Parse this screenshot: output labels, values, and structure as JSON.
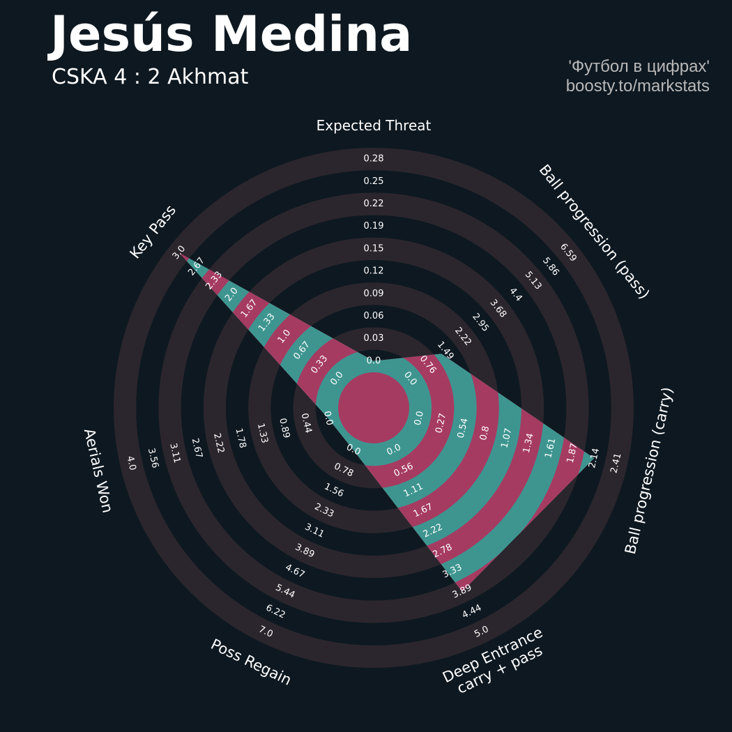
{
  "header": {
    "player_name": "Jesús Medina",
    "match": "CSKA 4 : 2 Akhmat",
    "credit_line1": "'Футбол в цифрах'",
    "credit_line2": "boosty.to/markstats"
  },
  "chart_data": {
    "type": "radar",
    "params": [
      {
        "label": "Expected Threat",
        "label2": "",
        "ticks": [
          "0.0",
          "0.03",
          "0.06",
          "0.09",
          "0.12",
          "0.15",
          "0.19",
          "0.22",
          "0.25",
          "0.28"
        ],
        "min": 0.0,
        "max": 0.28,
        "value": 0.0
      },
      {
        "label": "Ball progression (pass)",
        "label2": "",
        "ticks": [
          "0.0",
          "0.76",
          "1.49",
          "2.22",
          "2.95",
          "3.68",
          "4.4",
          "5.13",
          "5.86",
          "6.59"
        ],
        "min": 0.0,
        "max": 6.59,
        "value": 1.3
      },
      {
        "label": "Ball progression (carry)",
        "label2": "",
        "ticks": [
          "0.0",
          "0.27",
          "0.54",
          "0.8",
          "1.07",
          "1.34",
          "1.61",
          "1.87",
          "2.14",
          "2.41"
        ],
        "min": 0.0,
        "max": 2.41,
        "value": 2.14
      },
      {
        "label": "Deep Entrance",
        "label2": "carry + pass",
        "ticks": [
          "0.0",
          "0.56",
          "1.11",
          "1.67",
          "2.22",
          "2.78",
          "3.33",
          "3.89",
          "4.44",
          "5.0"
        ],
        "min": 0.0,
        "max": 5.0,
        "value": 3.89
      },
      {
        "label": "Poss Regain",
        "label2": "",
        "ticks": [
          "0.0",
          "0.78",
          "1.56",
          "2.33",
          "3.11",
          "3.89",
          "4.67",
          "5.44",
          "6.22",
          "7.0"
        ],
        "min": 0.0,
        "max": 7.0,
        "value": 0.0
      },
      {
        "label": "Aerials Won",
        "label2": "",
        "ticks": [
          "0.0",
          "0.44",
          "0.89",
          "1.33",
          "1.78",
          "2.22",
          "2.67",
          "3.11",
          "3.56",
          "4.0"
        ],
        "min": 0.0,
        "max": 4.0,
        "value": 0.0
      },
      {
        "label": "Key Pass",
        "label2": "",
        "ticks": [
          "0.0",
          "0.33",
          "0.67",
          "1.0",
          "1.33",
          "1.67",
          "2.0",
          "2.33",
          "2.67",
          "3.0"
        ],
        "min": 0.0,
        "max": 3.0,
        "value": 3.0
      }
    ],
    "colors": {
      "background": "#0e1820",
      "ring": "#2b262d",
      "fill_teal": "#3e9590",
      "fill_magenta": "#a63b62",
      "text": "#ffffff",
      "credit": "#b9b9b9"
    }
  }
}
